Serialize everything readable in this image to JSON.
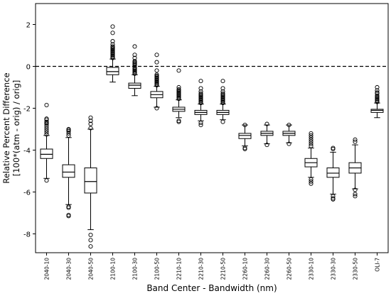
{
  "chart_data": {
    "type": "box",
    "xlabel": "Band Center - Bandwidth (nm)",
    "ylabel_lines": [
      "Relative Percent Difference",
      "[100*(atm - orig) / orig]"
    ],
    "ylim": [
      -8.9,
      3.0
    ],
    "yticks": [
      -8,
      -6,
      -4,
      -2,
      0,
      2
    ],
    "ytick_labels": [
      "-8",
      "-6",
      "-4",
      "-2",
      "0",
      "2"
    ],
    "reference_line": {
      "y": 0,
      "style": "dashed"
    },
    "categories": [
      "2040-10",
      "2040-30",
      "2040-50",
      "2100-10",
      "2100-30",
      "2100-50",
      "2210-10",
      "2210-30",
      "2210-50",
      "2260-10",
      "2260-30",
      "2260-50",
      "2330-10",
      "2330-30",
      "2330-50",
      "OLI-7"
    ],
    "boxes": [
      {
        "whislo": -5.35,
        "q1": -4.4,
        "med": -4.2,
        "q3": -3.95,
        "whishi": -3.3,
        "fliers": [
          -5.45,
          -1.85,
          -2.5,
          -2.55,
          -2.65,
          -2.7,
          -2.75,
          -2.85,
          -2.95,
          -3.05,
          -3.15,
          -3.25
        ]
      },
      {
        "whislo": -6.6,
        "q1": -5.3,
        "med": -5.05,
        "q3": -4.7,
        "whishi": -3.4,
        "fliers": [
          -7.15,
          -7.1,
          -6.75,
          -6.7,
          -3.0,
          -3.05,
          -3.1,
          -3.2,
          -3.3
        ]
      },
      {
        "whislo": -7.8,
        "q1": -6.05,
        "med": -5.5,
        "q3": -4.85,
        "whishi": -3.0,
        "fliers": [
          -8.6,
          -8.3,
          -8.05,
          -2.45,
          -2.6,
          -2.75,
          -2.95
        ]
      },
      {
        "whislo": -0.75,
        "q1": -0.4,
        "med": -0.25,
        "q3": -0.05,
        "whishi": 0.35,
        "fliers": [
          0.4,
          0.45,
          0.5,
          0.55,
          0.6,
          0.65,
          0.7,
          0.75,
          0.8,
          0.85,
          0.9,
          0.95,
          1.05,
          1.2,
          1.6,
          1.9
        ]
      },
      {
        "whislo": -1.4,
        "q1": -1.05,
        "med": -0.9,
        "q3": -0.8,
        "whishi": -0.4,
        "fliers": [
          -0.35,
          -0.3,
          -0.25,
          -0.2,
          -0.15,
          -0.1,
          -0.05,
          0.05,
          0.1,
          0.15,
          0.2,
          0.25,
          0.4,
          0.55,
          0.95
        ]
      },
      {
        "whislo": -1.95,
        "q1": -1.5,
        "med": -1.35,
        "q3": -1.2,
        "whishi": -0.95,
        "fliers": [
          -2.0,
          -0.9,
          -0.85,
          -0.8,
          -0.75,
          -0.7,
          -0.65,
          -0.6,
          -0.55,
          -0.5,
          -0.45,
          -0.4,
          -0.2,
          0.2,
          0.55
        ]
      },
      {
        "whislo": -2.45,
        "q1": -2.15,
        "med": -2.05,
        "q3": -1.95,
        "whishi": -1.6,
        "fliers": [
          -2.65,
          -2.6,
          -1.55,
          -1.5,
          -1.45,
          -1.4,
          -1.35,
          -1.3,
          -1.25,
          -1.2,
          -1.15,
          -1.1,
          -1.0,
          -0.2
        ]
      },
      {
        "whislo": -2.6,
        "q1": -2.3,
        "med": -2.2,
        "q3": -2.1,
        "whishi": -1.8,
        "fliers": [
          -2.8,
          -2.7,
          -1.75,
          -1.7,
          -1.65,
          -1.6,
          -1.55,
          -1.5,
          -1.45,
          -1.4,
          -1.35,
          -1.3,
          -1.2,
          -1.05,
          -0.7
        ]
      },
      {
        "whislo": -2.55,
        "q1": -2.3,
        "med": -2.2,
        "q3": -2.1,
        "whishi": -1.8,
        "fliers": [
          -2.65,
          -1.75,
          -1.7,
          -1.65,
          -1.6,
          -1.55,
          -1.5,
          -1.45,
          -1.4,
          -1.35,
          -1.3,
          -1.2,
          -1.05,
          -0.7
        ]
      },
      {
        "whislo": -3.8,
        "q1": -3.45,
        "med": -3.3,
        "q3": -3.2,
        "whishi": -2.8,
        "fliers": [
          -3.95,
          -3.9,
          -2.8
        ]
      },
      {
        "whislo": -3.7,
        "q1": -3.3,
        "med": -3.2,
        "q3": -3.1,
        "whishi": -2.8,
        "fliers": [
          -3.75,
          -2.75
        ]
      },
      {
        "whislo": -3.65,
        "q1": -3.3,
        "med": -3.2,
        "q3": -3.1,
        "whishi": -2.8,
        "fliers": [
          -3.7,
          -2.8
        ]
      },
      {
        "whislo": -5.3,
        "q1": -4.8,
        "med": -4.6,
        "q3": -4.4,
        "whishi": -3.9,
        "fliers": [
          -5.6,
          -5.5,
          -5.4,
          -3.8,
          -3.7,
          -3.6,
          -3.5,
          -3.4,
          -3.3,
          -3.2
        ]
      },
      {
        "whislo": -6.1,
        "q1": -5.3,
        "med": -5.1,
        "q3": -4.85,
        "whishi": -4.1,
        "fliers": [
          -6.35,
          -6.3,
          -6.2,
          -3.95,
          -3.9
        ]
      },
      {
        "whislo": -5.85,
        "q1": -5.1,
        "med": -4.85,
        "q3": -4.6,
        "whishi": -3.75,
        "fliers": [
          -6.2,
          -6.1,
          -5.9,
          -3.6,
          -3.5
        ]
      },
      {
        "whislo": -2.45,
        "q1": -2.2,
        "med": -2.1,
        "q3": -2.05,
        "whishi": -1.75,
        "fliers": [
          -1.7,
          -1.65,
          -1.6,
          -1.55,
          -1.5,
          -1.45,
          -1.4,
          -1.3,
          -1.25,
          -1.15,
          -1.0
        ]
      }
    ]
  }
}
